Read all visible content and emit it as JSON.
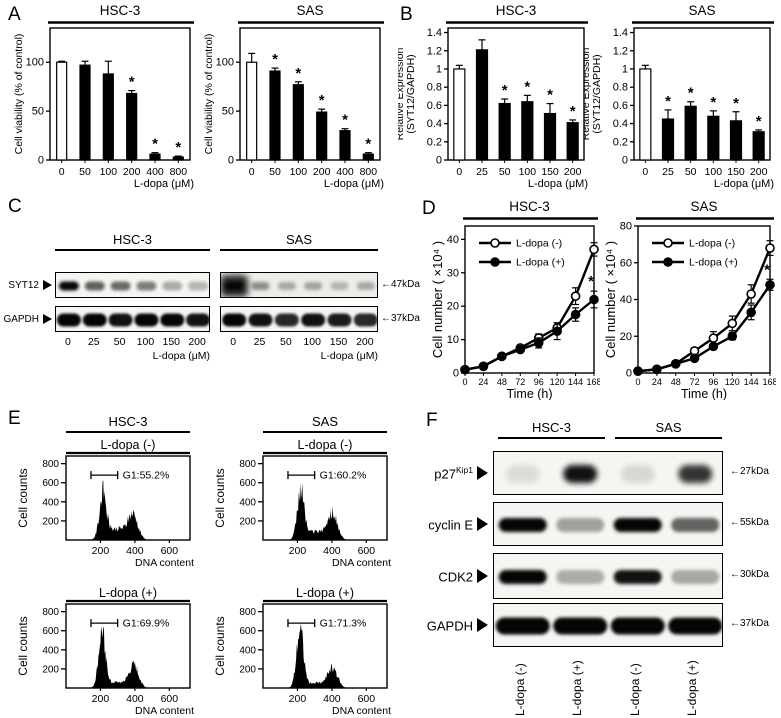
{
  "figure": {
    "bg": "#ffffff",
    "fg": "#000000"
  },
  "panels": {
    "A": {
      "label": "A"
    },
    "B": {
      "label": "B"
    },
    "C": {
      "label": "C",
      "block_titles": [
        "HSC-3",
        "SAS"
      ],
      "row_labels": [
        "SYT12",
        "GAPDH"
      ],
      "kda_labels": [
        "←47kDa",
        "←37kDa"
      ],
      "lane_labels": [
        "0",
        "25",
        "50",
        "100",
        "150",
        "200"
      ],
      "xlabel": "L-dopa (μM)",
      "blocks": [
        {
          "title": "HSC-3",
          "bands": [
            [
              1,
              0.62,
              0.58,
              0.5,
              0.3,
              0.26
            ],
            [
              1,
              1,
              0.95,
              1,
              1,
              0.95
            ]
          ]
        },
        {
          "title": "SAS",
          "bands": [
            [
              1,
              0.42,
              0.3,
              0.32,
              0.25,
              0.3
            ],
            [
              1,
              0.95,
              0.85,
              0.95,
              0.9,
              0.85
            ]
          ]
        }
      ]
    },
    "D": {
      "label": "D"
    },
    "E": {
      "label": "E",
      "col_titles": [
        "HSC-3",
        "SAS"
      ]
    },
    "F": {
      "label": "F",
      "group_titles": [
        "HSC-3",
        "SAS"
      ],
      "rows": [
        {
          "label": "p27",
          "sup": "Kip1",
          "kda": "←27kDa",
          "bands": [
            0.1,
            0.95,
            0.12,
            0.8
          ]
        },
        {
          "label": "cyclin E",
          "sup": "",
          "kda": "←55kDa",
          "bands": [
            1,
            0.35,
            1,
            0.6
          ]
        },
        {
          "label": "CDK2",
          "sup": "",
          "kda": "←30kDa",
          "bands": [
            1,
            0.3,
            0.95,
            0.32
          ]
        },
        {
          "label": "GAPDH",
          "sup": "",
          "kda": "←37kDa",
          "bands": [
            1,
            1,
            1,
            1
          ]
        }
      ],
      "lane_labels": [
        "L-dopa (-)",
        "L-dopa (+)",
        "L-dopa (-)",
        "L-dopa (+)"
      ]
    }
  },
  "chart_data": [
    {
      "panel": "A",
      "type": "bar",
      "title": "HSC-3",
      "ylabel": [
        "Cell viability (% of control)"
      ],
      "xlabel": "L-dopa (μM)",
      "categories": [
        "0",
        "50",
        "100",
        "200",
        "400",
        "800"
      ],
      "values": [
        100,
        97,
        88,
        68,
        6,
        3
      ],
      "errors": [
        1,
        4,
        13,
        3,
        1.5,
        1
      ],
      "sig": [
        0,
        0,
        0,
        1,
        1,
        1
      ],
      "ymax": 135,
      "yticks": [
        0,
        50,
        100
      ],
      "ytick_labels": [
        "0",
        "50",
        "100"
      ],
      "open_first": true
    },
    {
      "panel": "A",
      "type": "bar",
      "title": "SAS",
      "ylabel": [
        "Cell viability (% of control)"
      ],
      "xlabel": "L-dopa (μM)",
      "categories": [
        "0",
        "50",
        "100",
        "200",
        "400",
        "800"
      ],
      "values": [
        100,
        91,
        77,
        49,
        30,
        6
      ],
      "errors": [
        9,
        3,
        3,
        3,
        2,
        1.5
      ],
      "sig": [
        0,
        1,
        1,
        1,
        1,
        1
      ],
      "ymax": 135,
      "yticks": [
        0,
        50,
        100
      ],
      "ytick_labels": [
        "0",
        "50",
        "100"
      ],
      "open_first": true
    },
    {
      "panel": "B",
      "type": "bar",
      "title": "HSC-3",
      "ylabel": [
        "Relative Expression",
        "(SYT12/GAPDH)"
      ],
      "xlabel": "L-dopa (μM)",
      "categories": [
        "0",
        "25",
        "50",
        "100",
        "150",
        "200"
      ],
      "values": [
        1,
        1.21,
        0.62,
        0.64,
        0.51,
        0.41
      ],
      "errors": [
        0.04,
        0.11,
        0.05,
        0.07,
        0.11,
        0.03
      ],
      "sig": [
        0,
        0,
        1,
        1,
        1,
        1
      ],
      "ymax": 1.45,
      "yticks": [
        0,
        0.2,
        0.4,
        0.6,
        0.8,
        1,
        1.2,
        1.4
      ],
      "ytick_labels": [
        "0",
        "0.2",
        "0.4",
        "0.6",
        "0.8",
        "1",
        "1.2",
        "1.4"
      ],
      "open_first": true
    },
    {
      "panel": "B",
      "type": "bar",
      "title": "SAS",
      "ylabel": [
        "Relative Expression",
        "(SYT12/GAPDH)"
      ],
      "xlabel": "L-dopa (μM)",
      "categories": [
        "0",
        "25",
        "50",
        "100",
        "150",
        "200"
      ],
      "values": [
        1,
        0.45,
        0.59,
        0.48,
        0.43,
        0.31
      ],
      "errors": [
        0.04,
        0.1,
        0.05,
        0.06,
        0.1,
        0.02
      ],
      "sig": [
        0,
        1,
        1,
        1,
        1,
        1
      ],
      "ymax": 1.45,
      "yticks": [
        0,
        0.2,
        0.4,
        0.6,
        0.8,
        1,
        1.2,
        1.4
      ],
      "ytick_labels": [
        "0",
        "0.2",
        "0.4",
        "0.6",
        "0.8",
        "1",
        "1.2",
        "1.4"
      ],
      "open_first": true
    },
    {
      "panel": "D",
      "type": "line",
      "title": "HSC-3",
      "ylabel": "Cell number ( ×10⁴ )",
      "xlabel": "Time (h)",
      "x": [
        0,
        24,
        48,
        72,
        96,
        120,
        144,
        168
      ],
      "ymax": 44,
      "yticks": [
        0,
        10,
        20,
        30,
        40
      ],
      "series": [
        {
          "name": "L-dopa (-)",
          "marker": "open",
          "values": [
            1,
            2,
            5,
            7.5,
            10.5,
            13.5,
            23,
            37
          ],
          "errors": [
            0,
            0,
            0,
            0,
            1.2,
            1.5,
            2.5,
            2
          ],
          "sig_last": false
        },
        {
          "name": "L-dopa (+)",
          "marker": "filled",
          "values": [
            1,
            2,
            5,
            7,
            9,
            12.5,
            17.5,
            22
          ],
          "errors": [
            0,
            0,
            0,
            0,
            1.5,
            2.5,
            2,
            2.5
          ],
          "sig_last": true
        }
      ]
    },
    {
      "panel": "D",
      "type": "line",
      "title": "SAS",
      "ylabel": "Cell number ( ×10⁴ )",
      "xlabel": "Time (h)",
      "x": [
        0,
        24,
        48,
        72,
        96,
        120,
        144,
        168
      ],
      "ymax": 80,
      "yticks": [
        0,
        20,
        40,
        60,
        80
      ],
      "series": [
        {
          "name": "L-dopa (-)",
          "marker": "open",
          "values": [
            1,
            2,
            5,
            12,
            19,
            27,
            43,
            68
          ],
          "errors": [
            0,
            0,
            0,
            1.5,
            3.5,
            4,
            5,
            4
          ],
          "sig_last": false
        },
        {
          "name": "L-dopa (+)",
          "marker": "filled",
          "values": [
            1,
            2,
            5,
            8,
            14.5,
            20,
            33,
            48
          ],
          "errors": [
            0,
            0,
            0,
            1,
            1.5,
            2,
            4,
            3
          ],
          "sig_last": true
        }
      ]
    },
    {
      "panel": "E",
      "type": "flow",
      "cell_line": "HSC-3",
      "condition": "L-dopa (-)",
      "g1_label": "G1:55.2%",
      "g1_percent": 55.2,
      "ylabel": "Cell counts",
      "xlabel": "DNA content",
      "yticks": [
        200,
        400,
        600,
        800
      ],
      "xticks": [
        200,
        400,
        600
      ],
      "ymax": 880,
      "xmax": 720,
      "peaks": {
        "g1x": 215,
        "g1h": 460,
        "g2x": 390,
        "g2h": 235,
        "valley": 120
      },
      "seed": 1
    },
    {
      "panel": "E",
      "type": "flow",
      "cell_line": "SAS",
      "condition": "L-dopa (-)",
      "g1_label": "G1:60.2%",
      "g1_percent": 60.2,
      "ylabel": "Cell counts",
      "xlabel": "DNA content",
      "yticks": [
        200,
        400,
        600,
        800
      ],
      "xticks": [
        200,
        400,
        600
      ],
      "ymax": 880,
      "xmax": 720,
      "peaks": {
        "g1x": 220,
        "g1h": 500,
        "g2x": 405,
        "g2h": 255,
        "valley": 90
      },
      "seed": 2
    },
    {
      "panel": "E",
      "type": "flow",
      "cell_line": "HSC-3",
      "condition": "L-dopa (+)",
      "g1_label": "G1:69.9%",
      "g1_percent": 69.9,
      "ylabel": "Cell counts",
      "xlabel": "DNA content",
      "yticks": [
        200,
        400,
        600,
        800
      ],
      "xticks": [
        200,
        400,
        600
      ],
      "ymax": 880,
      "xmax": 720,
      "peaks": {
        "g1x": 210,
        "g1h": 570,
        "g2x": 395,
        "g2h": 215,
        "valley": 60
      },
      "seed": 3
    },
    {
      "panel": "E",
      "type": "flow",
      "cell_line": "SAS",
      "condition": "L-dopa (+)",
      "g1_label": "G1:71.3%",
      "g1_percent": 71.3,
      "ylabel": "Cell counts",
      "xlabel": "DNA content",
      "yticks": [
        200,
        400,
        600,
        800
      ],
      "xticks": [
        200,
        400,
        600
      ],
      "ymax": 880,
      "xmax": 720,
      "peaks": {
        "g1x": 215,
        "g1h": 585,
        "g2x": 405,
        "g2h": 205,
        "valley": 55
      },
      "seed": 4
    }
  ]
}
